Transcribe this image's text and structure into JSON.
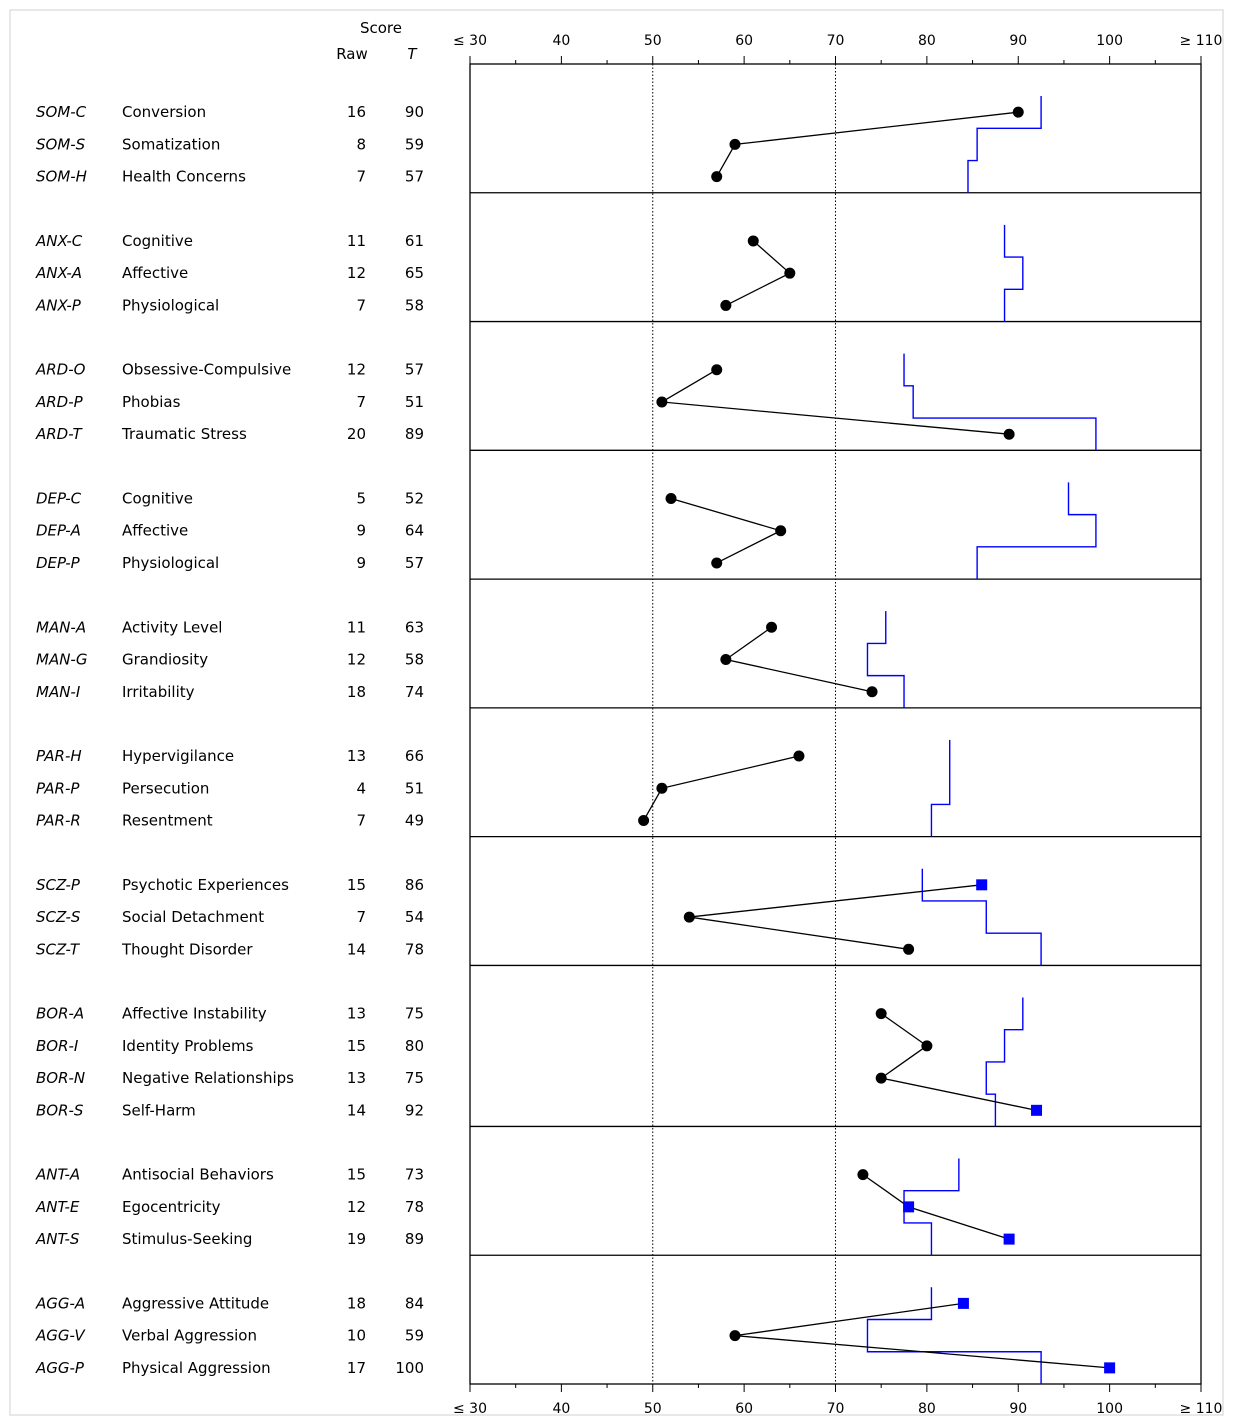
{
  "header": {
    "score": "Score",
    "raw": "Raw",
    "t": "T"
  },
  "chart_data": {
    "type": "line",
    "x_axis": {
      "range": [
        30,
        110
      ],
      "ticks": [
        {
          "value": 30,
          "label": "≤ 30"
        },
        {
          "value": 40,
          "label": "40"
        },
        {
          "value": 50,
          "label": "50"
        },
        {
          "value": 60,
          "label": "60"
        },
        {
          "value": 70,
          "label": "70"
        },
        {
          "value": 80,
          "label": "80"
        },
        {
          "value": 90,
          "label": "90"
        },
        {
          "value": 100,
          "label": "100"
        },
        {
          "value": 110,
          "label": "≥ 110"
        }
      ],
      "reference_lines": [
        50,
        70
      ]
    },
    "colors": {
      "score_line": "#000000",
      "point": "#000000",
      "flag_point": "#0000ff",
      "threshold_line": "#0000ff",
      "dotted_line": "#000000"
    },
    "groups": [
      {
        "rows": [
          {
            "abbr": "SOM-C",
            "name": "Conversion",
            "raw": 16,
            "t": 90,
            "flag": false,
            "thr": 92.5
          },
          {
            "abbr": "SOM-S",
            "name": "Somatization",
            "raw": 8,
            "t": 59,
            "flag": false,
            "thr": 85.5
          },
          {
            "abbr": "SOM-H",
            "name": "Health Concerns",
            "raw": 7,
            "t": 57,
            "flag": false,
            "thr": 84.5
          }
        ]
      },
      {
        "rows": [
          {
            "abbr": "ANX-C",
            "name": "Cognitive",
            "raw": 11,
            "t": 61,
            "flag": false,
            "thr": 88.5
          },
          {
            "abbr": "ANX-A",
            "name": "Affective",
            "raw": 12,
            "t": 65,
            "flag": false,
            "thr": 90.5
          },
          {
            "abbr": "ANX-P",
            "name": "Physiological",
            "raw": 7,
            "t": 58,
            "flag": false,
            "thr": 88.5
          }
        ]
      },
      {
        "rows": [
          {
            "abbr": "ARD-O",
            "name": "Obsessive-Compulsive",
            "raw": 12,
            "t": 57,
            "flag": false,
            "thr": 77.5
          },
          {
            "abbr": "ARD-P",
            "name": "Phobias",
            "raw": 7,
            "t": 51,
            "flag": false,
            "thr": 78.5
          },
          {
            "abbr": "ARD-T",
            "name": "Traumatic Stress",
            "raw": 20,
            "t": 89,
            "flag": false,
            "thr": 98.5
          }
        ]
      },
      {
        "rows": [
          {
            "abbr": "DEP-C",
            "name": "Cognitive",
            "raw": 5,
            "t": 52,
            "flag": false,
            "thr": 95.5
          },
          {
            "abbr": "DEP-A",
            "name": "Affective",
            "raw": 9,
            "t": 64,
            "flag": false,
            "thr": 98.5
          },
          {
            "abbr": "DEP-P",
            "name": "Physiological",
            "raw": 9,
            "t": 57,
            "flag": false,
            "thr": 85.5
          }
        ]
      },
      {
        "rows": [
          {
            "abbr": "MAN-A",
            "name": "Activity Level",
            "raw": 11,
            "t": 63,
            "flag": false,
            "thr": 75.5
          },
          {
            "abbr": "MAN-G",
            "name": "Grandiosity",
            "raw": 12,
            "t": 58,
            "flag": false,
            "thr": 73.5
          },
          {
            "abbr": "MAN-I",
            "name": "Irritability",
            "raw": 18,
            "t": 74,
            "flag": false,
            "thr": 77.5
          }
        ]
      },
      {
        "rows": [
          {
            "abbr": "PAR-H",
            "name": "Hypervigilance",
            "raw": 13,
            "t": 66,
            "flag": false,
            "thr": 82.5
          },
          {
            "abbr": "PAR-P",
            "name": "Persecution",
            "raw": 4,
            "t": 51,
            "flag": false,
            "thr": 82.5
          },
          {
            "abbr": "PAR-R",
            "name": "Resentment",
            "raw": 7,
            "t": 49,
            "flag": false,
            "thr": 80.5
          }
        ]
      },
      {
        "rows": [
          {
            "abbr": "SCZ-P",
            "name": "Psychotic Experiences",
            "raw": 15,
            "t": 86,
            "flag": true,
            "thr": 79.5
          },
          {
            "abbr": "SCZ-S",
            "name": "Social Detachment",
            "raw": 7,
            "t": 54,
            "flag": false,
            "thr": 86.5
          },
          {
            "abbr": "SCZ-T",
            "name": "Thought Disorder",
            "raw": 14,
            "t": 78,
            "flag": false,
            "thr": 92.5
          }
        ]
      },
      {
        "rows": [
          {
            "abbr": "BOR-A",
            "name": "Affective Instability",
            "raw": 13,
            "t": 75,
            "flag": false,
            "thr": 90.5
          },
          {
            "abbr": "BOR-I",
            "name": "Identity Problems",
            "raw": 15,
            "t": 80,
            "flag": false,
            "thr": 88.5
          },
          {
            "abbr": "BOR-N",
            "name": "Negative Relationships",
            "raw": 13,
            "t": 75,
            "flag": false,
            "thr": 86.5
          },
          {
            "abbr": "BOR-S",
            "name": "Self-Harm",
            "raw": 14,
            "t": 92,
            "flag": true,
            "thr": 87.5
          }
        ]
      },
      {
        "rows": [
          {
            "abbr": "ANT-A",
            "name": "Antisocial Behaviors",
            "raw": 15,
            "t": 73,
            "flag": false,
            "thr": 83.5
          },
          {
            "abbr": "ANT-E",
            "name": "Egocentricity",
            "raw": 12,
            "t": 78,
            "flag": true,
            "thr": 77.5
          },
          {
            "abbr": "ANT-S",
            "name": "Stimulus-Seeking",
            "raw": 19,
            "t": 89,
            "flag": true,
            "thr": 80.5
          }
        ]
      },
      {
        "rows": [
          {
            "abbr": "AGG-A",
            "name": "Aggressive Attitude",
            "raw": 18,
            "t": 84,
            "flag": true,
            "thr": 80.5
          },
          {
            "abbr": "AGG-V",
            "name": "Verbal Aggression",
            "raw": 10,
            "t": 59,
            "flag": false,
            "thr": 73.5
          },
          {
            "abbr": "AGG-P",
            "name": "Physical Aggression",
            "raw": 17,
            "t": 100,
            "flag": true,
            "thr": 92.5
          }
        ]
      }
    ]
  }
}
